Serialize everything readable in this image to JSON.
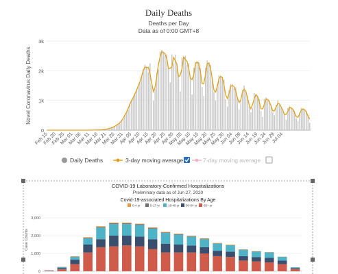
{
  "colors": {
    "bar": "#c8c8c8",
    "line3": "#e1a21a",
    "line7": "#f2b6c9",
    "age_0_4": "#e39a49",
    "age_5_17": "#6f6f6f",
    "age_18_49": "#4eb3c7",
    "age_50_64": "#3a4f6e",
    "age_65": "#cf5b4b",
    "checkbox": "#2a6ebb"
  },
  "chart_data": [
    {
      "type": "bar",
      "title": "Daily Deaths",
      "subtitle": "Deaths per Day",
      "subtitle2": "Data as of 0:00 GMT+8",
      "ylabel": "Novel Coronavirus Daily Deaths",
      "xlabel": "",
      "ylim": [
        0,
        3000
      ],
      "yticks": [
        "0",
        "1k",
        "2k",
        "3k"
      ],
      "x_tick_labels": [
        "Feb 15",
        "Feb 20",
        "Feb 25",
        "Mar 01",
        "Mar 06",
        "Mar 11",
        "Mar 16",
        "Mar 21",
        "Mar 26",
        "Mar 31",
        "Apr 05",
        "Apr 10",
        "Apr 15",
        "Apr 20",
        "Apr 25",
        "Apr 30",
        "May 05",
        "May 10",
        "May 15",
        "May 20",
        "May 25",
        "May 30",
        "Jun 04",
        "Jun 09",
        "Jun 14",
        "Jun 19",
        "Jun 24",
        "Jun 29",
        "Jul 04"
      ],
      "start_label": "Feb 15",
      "values": [
        0,
        0,
        0,
        0,
        0,
        0,
        0,
        0,
        0,
        0,
        0,
        0,
        0,
        0,
        0,
        0,
        0,
        0,
        0,
        0,
        0,
        0,
        0,
        0,
        0,
        1,
        1,
        2,
        3,
        5,
        8,
        10,
        14,
        20,
        25,
        35,
        45,
        60,
        80,
        100,
        130,
        160,
        200,
        250,
        300,
        400,
        500,
        600,
        700,
        900,
        1000,
        1100,
        1200,
        1350,
        1500,
        1600,
        1800,
        2050,
        2200,
        2150,
        1950,
        2250,
        1500,
        1000,
        1400,
        1950,
        2050,
        2650,
        2700,
        2600,
        2550,
        2550,
        2100,
        1600,
        2550,
        2250,
        2550,
        2250,
        1850,
        1300,
        2450,
        2450,
        2500,
        2200,
        2250,
        1800,
        1200,
        2100,
        2300,
        2300,
        2300,
        2100,
        1450,
        1150,
        2100,
        2350,
        2250,
        2200,
        1750,
        1300,
        1000,
        1550,
        1850,
        1800,
        1800,
        1700,
        1050,
        800,
        1350,
        1550,
        1550,
        1400,
        1450,
        1100,
        700,
        1000,
        1350,
        1500,
        1300,
        1150,
        800,
        600,
        750,
        1250,
        1200,
        1150,
        1050,
        650,
        450,
        1050,
        1100,
        1000,
        1000,
        850,
        600,
        500,
        850,
        1000,
        850,
        800,
        700,
        500,
        350,
        750,
        800,
        750,
        700,
        650,
        400,
        300,
        600,
        750,
        700,
        700,
        650,
        500,
        250
      ],
      "series": [
        {
          "name": "Daily Deaths",
          "kind": "bar"
        },
        {
          "name": "3-day moving average",
          "kind": "line",
          "checked": true
        },
        {
          "name": "7-day moving average",
          "kind": "line",
          "checked": false
        }
      ],
      "legend": "bottom"
    },
    {
      "type": "bar",
      "stacked": true,
      "title": "COVID-19 Laboratory-Confirmed Hospitalizations",
      "subtitle": "Preliminary data as of Jun 27, 2020",
      "subtitle2": "Covid-19-associated Hospitalizations By Age",
      "ylabel": "Case Counts",
      "ylim": [
        0,
        3500
      ],
      "yticks": [
        "0",
        "1,000",
        "2,000",
        "3,000"
      ],
      "series": [
        {
          "name": "0-4 yr",
          "values": [
            5,
            10,
            20,
            30,
            40,
            40,
            40,
            35,
            35,
            30,
            30,
            25,
            25,
            20,
            20,
            15,
            15,
            15,
            10,
            5
          ]
        },
        {
          "name": "5-17 yr",
          "values": [
            5,
            10,
            20,
            30,
            40,
            40,
            40,
            35,
            35,
            30,
            30,
            25,
            25,
            20,
            20,
            15,
            15,
            15,
            10,
            5
          ]
        },
        {
          "name": "18-49 yr",
          "values": [
            10,
            50,
            150,
            350,
            650,
            650,
            650,
            650,
            600,
            600,
            550,
            500,
            450,
            400,
            350,
            350,
            300,
            300,
            200,
            50
          ]
        },
        {
          "name": "50-64 yr",
          "values": [
            15,
            70,
            250,
            450,
            450,
            600,
            550,
            550,
            550,
            500,
            450,
            400,
            350,
            300,
            300,
            250,
            250,
            250,
            200,
            50
          ]
        },
        {
          "name": "65+ yr",
          "values": [
            20,
            110,
            400,
            1050,
            1350,
            1400,
            1450,
            1400,
            1250,
            1050,
            1050,
            1050,
            1000,
            850,
            800,
            600,
            550,
            500,
            400,
            120
          ]
        }
      ],
      "legend": "top"
    }
  ]
}
